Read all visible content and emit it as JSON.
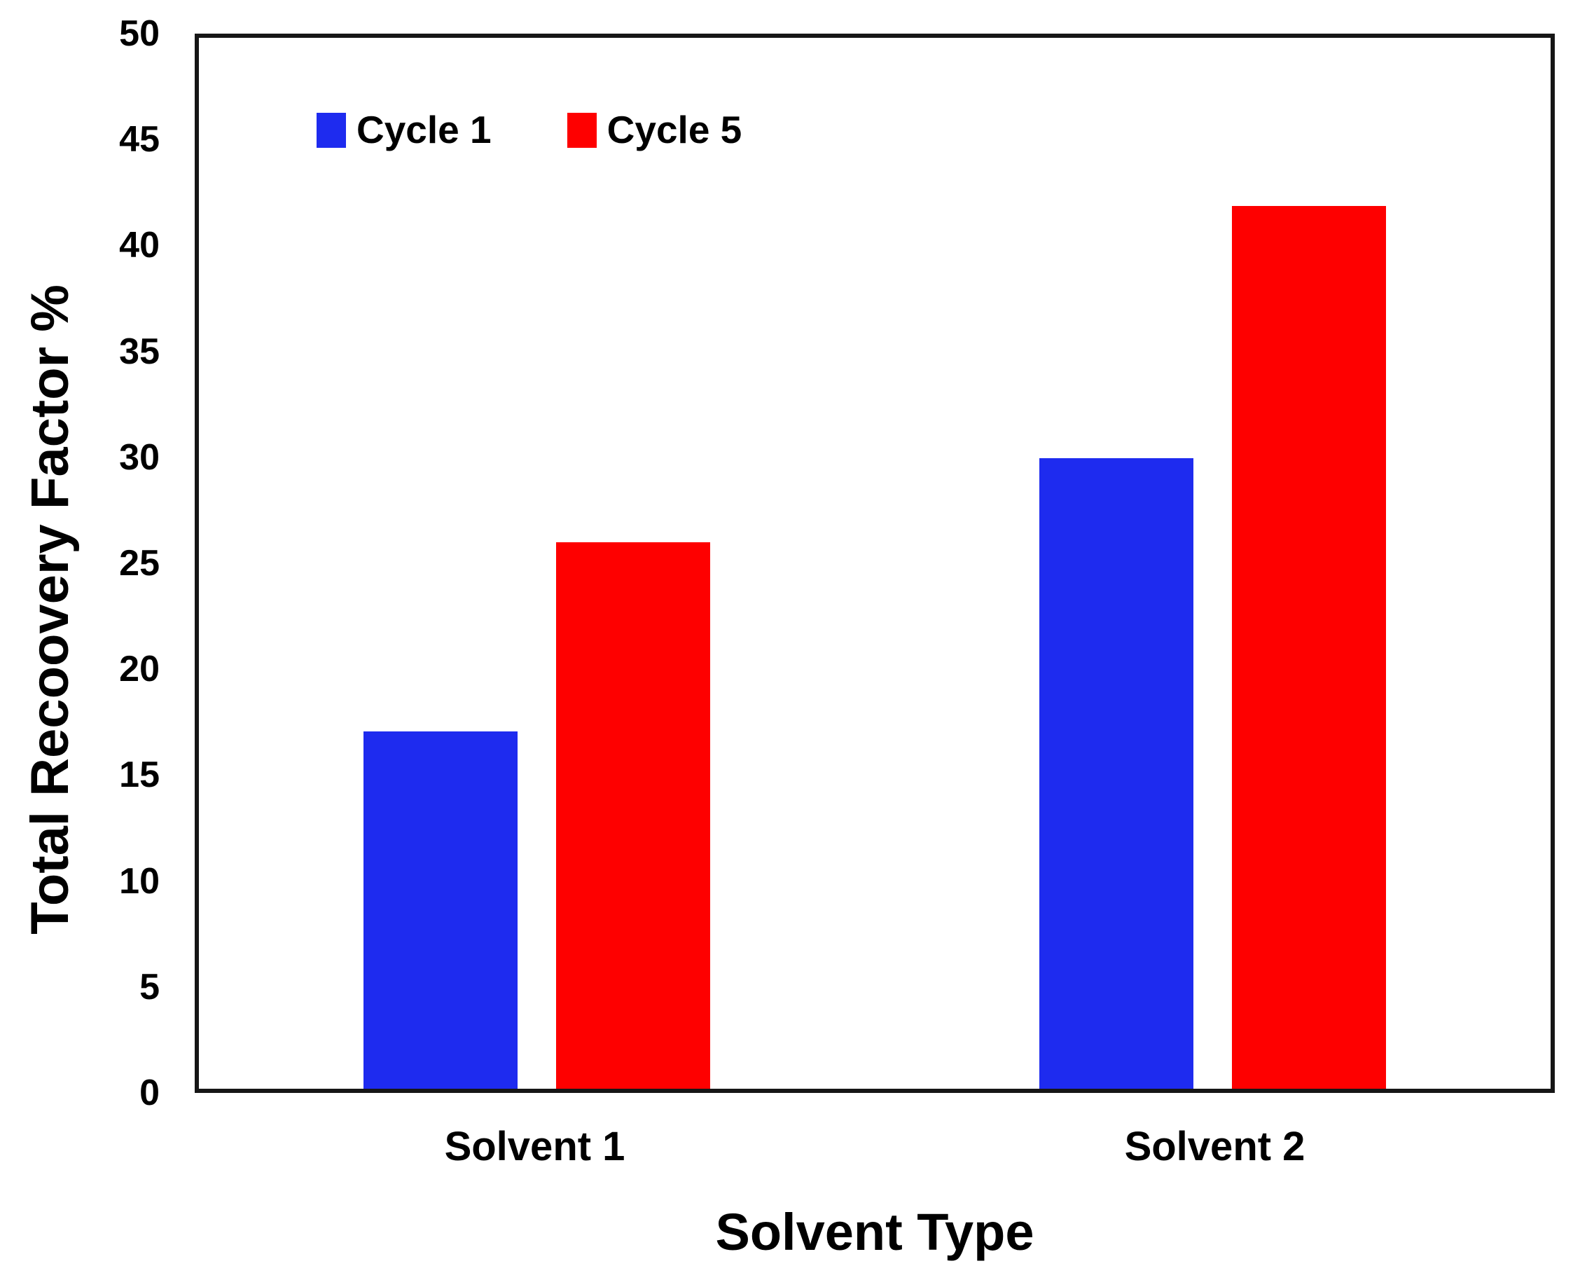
{
  "chart_data": {
    "type": "bar",
    "title": "",
    "categories": [
      "Solvent 1",
      "Solvent 2"
    ],
    "series": [
      {
        "name": "Cycle 1",
        "color": "#1e2bef",
        "values": [
          17,
          30
        ]
      },
      {
        "name": "Cycle 5",
        "color": "#fe0000",
        "values": [
          26,
          42
        ]
      }
    ],
    "xlabel": "Solvent Type",
    "ylabel": "Total Recoovery Factor %",
    "ylim": [
      0,
      50
    ],
    "ytick_step": 5,
    "yticks": [
      0,
      5,
      10,
      15,
      20,
      25,
      30,
      35,
      40,
      45,
      50
    ],
    "grid": false,
    "legend_position": "inside-top-left",
    "axis_color": "#161616",
    "background": "#ffffff"
  }
}
